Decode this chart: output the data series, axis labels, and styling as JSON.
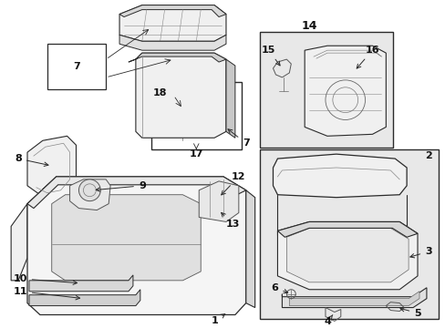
{
  "bg_color": "#ffffff",
  "figure_size": [
    4.89,
    3.6
  ],
  "dpi": 100,
  "line_color": "#2a2a2a",
  "gray_bg": "#d8d8d8",
  "light_gray": "#e8e8e8",
  "label_fontsize": 8,
  "label_fontsize_large": 11
}
